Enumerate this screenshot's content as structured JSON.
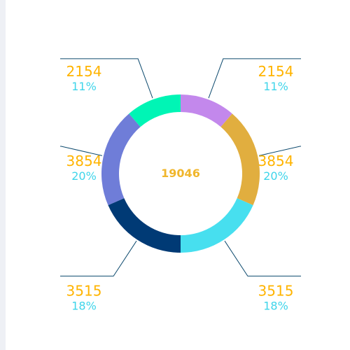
{
  "chart_data": {
    "type": "pie",
    "variant": "donut",
    "center_label": "19046",
    "slices": [
      {
        "value": 2154,
        "percent": "11%",
        "color": "#c388ec"
      },
      {
        "value": 3854,
        "percent": "20%",
        "color": "#e1ae3f"
      },
      {
        "value": 3515,
        "percent": "18%",
        "color": "#47dfef"
      },
      {
        "value": 3515,
        "percent": "18%",
        "color": "#003a75"
      },
      {
        "value": 3854,
        "percent": "20%",
        "color": "#6f7dd8"
      },
      {
        "value": 2154,
        "percent": "11%",
        "color": "#00f5b5"
      }
    ],
    "label_colors": {
      "value": "#ffb400",
      "percent": "#3fd5ea",
      "center": "#f0b62c",
      "leader": "#0d4a6e"
    }
  }
}
